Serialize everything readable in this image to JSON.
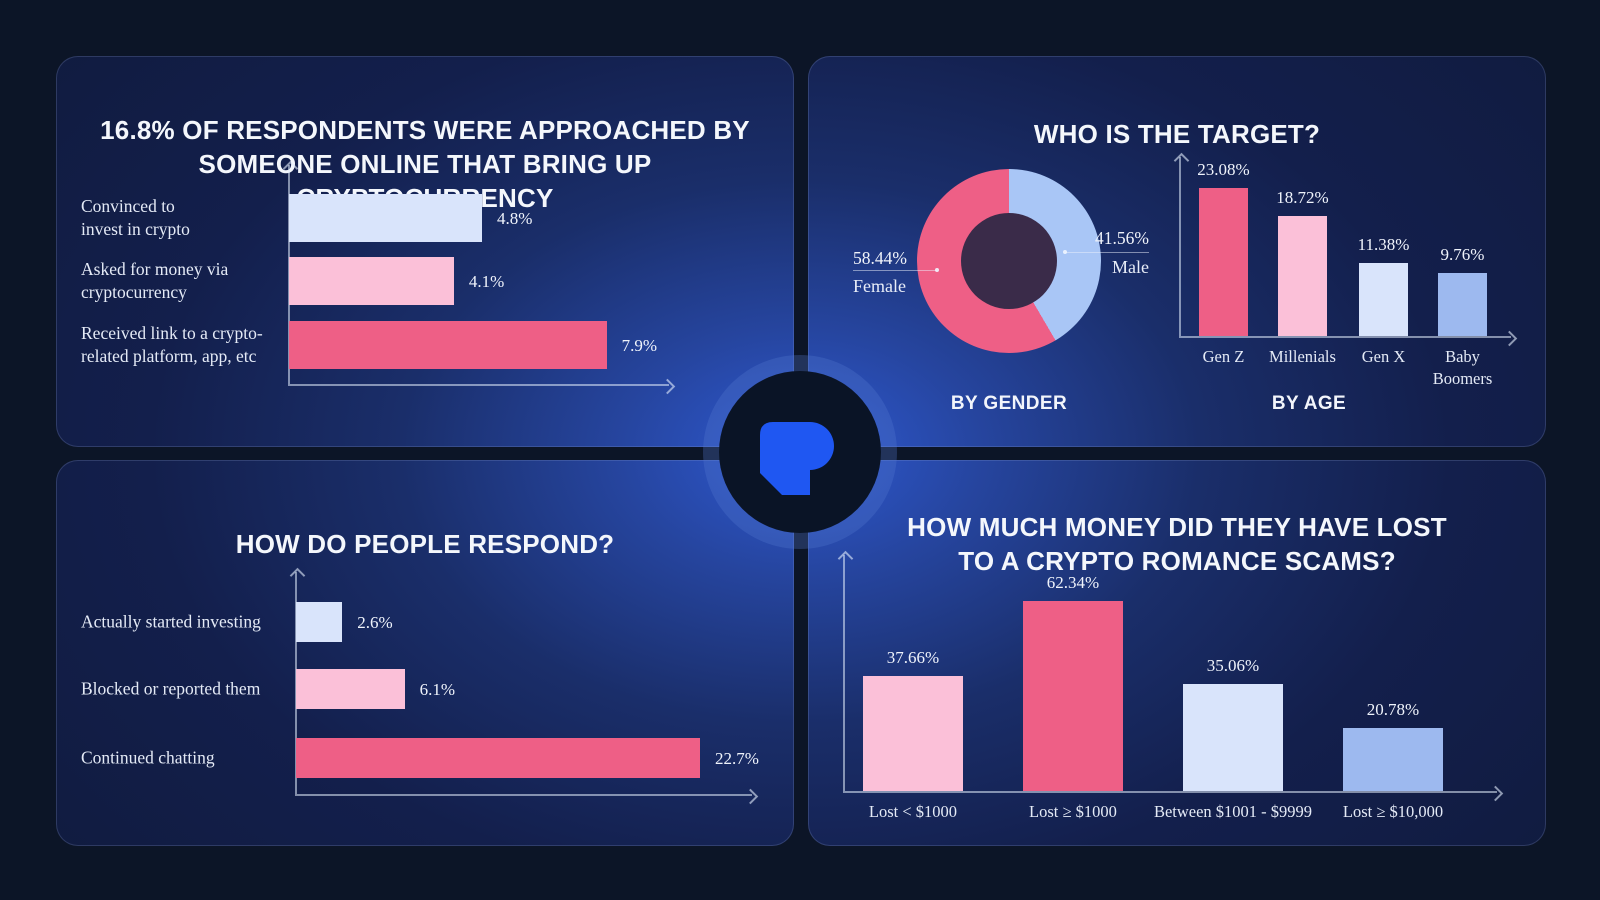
{
  "colors": {
    "hot_pink": "#ee5f86",
    "light_pink": "#fbc0d8",
    "lavender": "#d9e4fb",
    "periwinkle": "#9db9ef",
    "male_blue": "#a9c6f6",
    "donut_hole": "#3a2b49",
    "logo_blue": "#1f57f2"
  },
  "panels": {
    "approached": {
      "title": "16.8% OF RESPONDENTS WERE APPROACHED BY\nSOMEONE ONLINE THAT BRING UP CRYPTOCURRENCY"
    },
    "target": {
      "title": "WHO IS THE TARGET?"
    },
    "respond": {
      "title": "HOW DO PEOPLE RESPOND?"
    },
    "lost": {
      "title": "HOW MUCH MONEY DID THEY HAVE LOST\nTO A CRYPTO ROMANCE SCAMS?"
    }
  },
  "chart_data": [
    {
      "id": "approached",
      "type": "bar",
      "orientation": "horizontal",
      "categories": [
        "Convinced to\ninvest in crypto",
        "Asked for money via\ncryptocurrency",
        "Received link to a crypto-\nrelated platform, app, etc"
      ],
      "values": [
        4.8,
        4.1,
        7.9
      ],
      "value_labels": [
        "4.8%",
        "4.1%",
        "7.9%"
      ],
      "bar_colors": [
        "lavender",
        "light_pink",
        "hot_pink"
      ],
      "axes_labeled": false,
      "grid": false
    },
    {
      "id": "gender",
      "type": "pie",
      "donut": true,
      "start": "top",
      "direction": "clockwise",
      "slices": [
        {
          "label": "Male",
          "value": 41.56,
          "value_label": "41.56%",
          "color": "male_blue"
        },
        {
          "label": "Female",
          "value": 58.44,
          "value_label": "58.44%",
          "color": "hot_pink"
        }
      ],
      "caption": "BY GENDER"
    },
    {
      "id": "age",
      "type": "bar",
      "orientation": "vertical",
      "categories": [
        "Gen Z",
        "Millenials",
        "Gen X",
        "Baby\nBoomers"
      ],
      "values": [
        23.08,
        18.72,
        11.38,
        9.76
      ],
      "value_labels": [
        "23.08%",
        "18.72%",
        "11.38%",
        "9.76%"
      ],
      "bar_colors": [
        "hot_pink",
        "light_pink",
        "lavender",
        "periwinkle"
      ],
      "caption": "BY AGE",
      "axes_labeled": false,
      "grid": false
    },
    {
      "id": "respond",
      "type": "bar",
      "orientation": "horizontal",
      "categories": [
        "Actually started investing",
        "Blocked or reported them",
        "Continued chatting"
      ],
      "values": [
        2.6,
        6.1,
        22.7
      ],
      "value_labels": [
        "2.6%",
        "6.1%",
        "22.7%"
      ],
      "bar_colors": [
        "lavender",
        "light_pink",
        "hot_pink"
      ],
      "axes_labeled": false,
      "grid": false
    },
    {
      "id": "lost",
      "type": "bar",
      "orientation": "vertical",
      "categories": [
        "Lost < $1000",
        "Lost ≥ $1000",
        "Between $1001 - $9999",
        "Lost ≥ $10,000"
      ],
      "values": [
        37.66,
        62.34,
        35.06,
        20.78
      ],
      "value_labels": [
        "37.66%",
        "62.34%",
        "35.06%",
        "20.78%"
      ],
      "bar_colors": [
        "light_pink",
        "hot_pink",
        "lavender",
        "periwinkle"
      ],
      "axes_labeled": false,
      "grid": false
    }
  ]
}
